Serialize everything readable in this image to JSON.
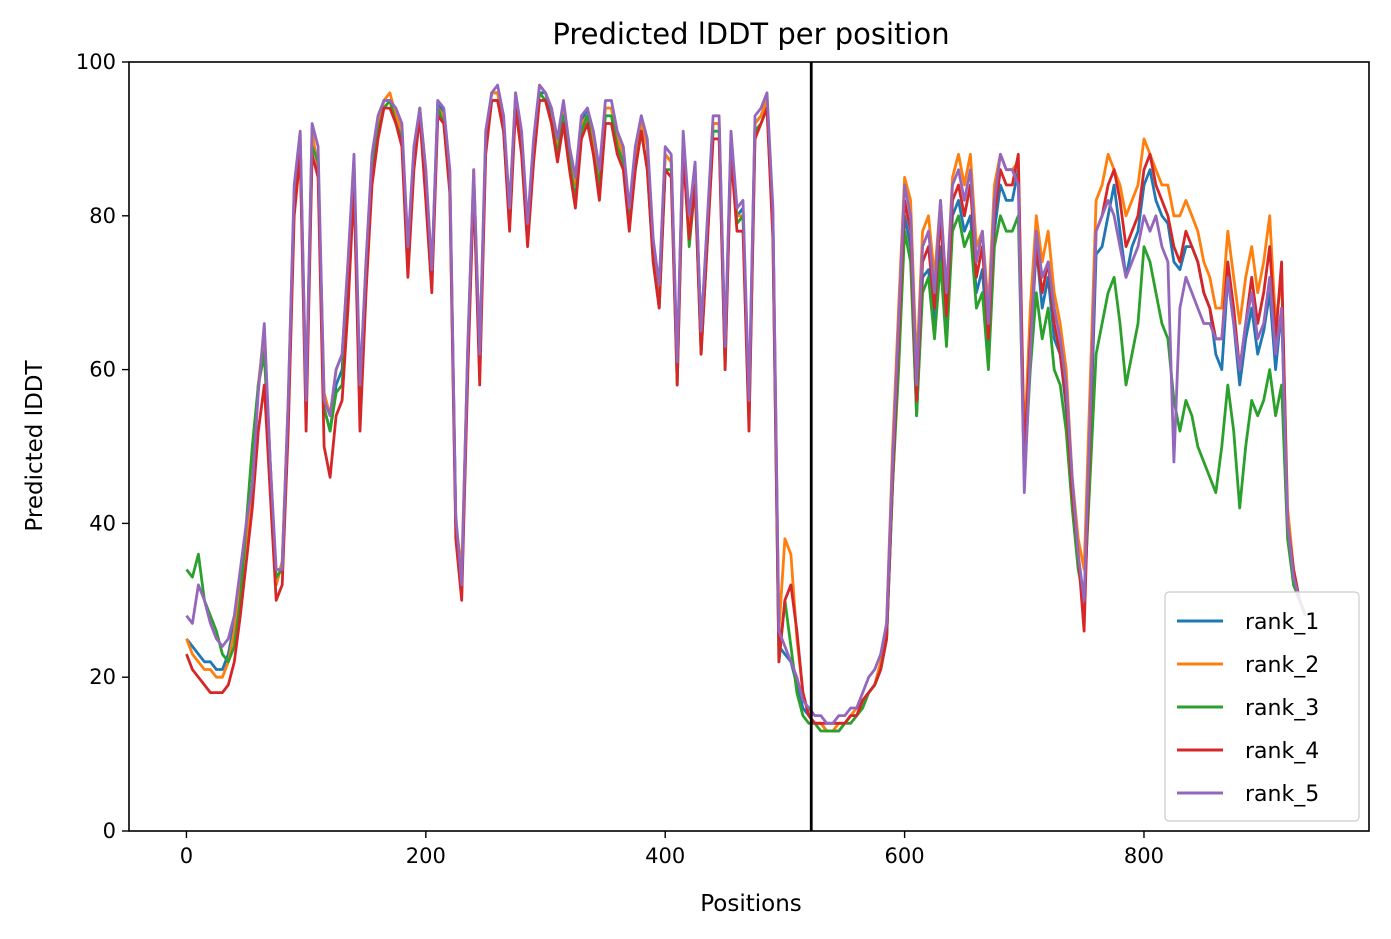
{
  "chart_data": {
    "type": "line",
    "title": "Predicted lDDT per position",
    "xlabel": "Positions",
    "ylabel": "Predicted lDDT",
    "xlim": [
      -48,
      988
    ],
    "ylim": [
      0,
      100
    ],
    "xticks": [
      0,
      200,
      400,
      600,
      800
    ],
    "yticks": [
      0,
      20,
      40,
      60,
      80,
      100
    ],
    "grid": false,
    "legend_position": "lower-right",
    "chain_break_x": 522,
    "sample_step": 5,
    "series": [
      {
        "name": "rank_1",
        "color": "#1f77b4",
        "values": [
          25,
          24,
          23,
          22,
          22,
          21,
          21,
          23,
          27,
          33,
          38,
          44,
          58,
          64,
          48,
          32,
          35,
          55,
          82,
          89,
          55,
          90,
          87,
          55,
          52,
          58,
          60,
          72,
          86,
          56,
          73,
          86,
          92,
          95,
          95,
          93,
          91,
          75,
          88,
          94,
          85,
          72,
          95,
          93,
          85,
          40,
          32,
          62,
          85,
          60,
          90,
          96,
          96,
          92,
          80,
          95,
          90,
          78,
          89,
          96,
          96,
          93,
          89,
          94,
          88,
          84,
          92,
          94,
          90,
          85,
          94,
          94,
          90,
          88,
          80,
          88,
          93,
          89,
          76,
          70,
          88,
          87,
          60,
          90,
          79,
          86,
          65,
          78,
          92,
          92,
          62,
          90,
          80,
          81,
          55,
          92,
          93,
          95,
          80,
          24,
          23,
          22,
          19,
          16,
          15,
          14,
          14,
          13,
          13,
          13,
          14,
          15,
          15,
          17,
          18,
          19,
          21,
          25,
          45,
          62,
          80,
          76,
          54,
          72,
          73,
          66,
          76,
          65,
          80,
          82,
          78,
          80,
          70,
          73,
          62,
          78,
          84,
          82,
          82,
          86,
          46,
          62,
          76,
          68,
          72,
          64,
          62,
          55,
          44,
          35,
          30,
          50,
          75,
          76,
          80,
          84,
          78,
          72,
          76,
          78,
          84,
          86,
          82,
          80,
          79,
          74,
          73,
          76,
          76,
          74,
          70,
          68,
          62,
          60,
          72,
          66,
          58,
          64,
          68,
          62,
          65,
          70,
          60,
          68,
          40,
          32,
          30,
          28
        ]
      },
      {
        "name": "rank_2",
        "color": "#ff7f0e",
        "values": [
          25,
          23,
          22,
          21,
          21,
          20,
          20,
          22,
          26,
          32,
          38,
          45,
          58,
          65,
          48,
          32,
          35,
          56,
          83,
          90,
          56,
          91,
          86,
          57,
          54,
          60,
          62,
          74,
          87,
          57,
          74,
          87,
          92,
          95,
          96,
          93,
          91,
          76,
          88,
          94,
          86,
          72,
          94,
          93,
          86,
          40,
          34,
          62,
          86,
          62,
          90,
          96,
          96,
          92,
          81,
          96,
          90,
          78,
          89,
          97,
          96,
          94,
          89,
          94,
          88,
          84,
          92,
          93,
          90,
          85,
          94,
          94,
          90,
          88,
          80,
          88,
          92,
          89,
          76,
          70,
          88,
          87,
          60,
          90,
          78,
          86,
          64,
          78,
          92,
          92,
          62,
          90,
          80,
          80,
          54,
          92,
          93,
          95,
          80,
          26,
          38,
          36,
          25,
          18,
          15,
          14,
          14,
          13,
          13,
          14,
          14,
          15,
          16,
          17,
          18,
          19,
          22,
          27,
          50,
          68,
          85,
          82,
          60,
          78,
          80,
          72,
          82,
          70,
          85,
          88,
          84,
          88,
          76,
          78,
          68,
          84,
          88,
          86,
          86,
          87,
          50,
          68,
          80,
          74,
          78,
          70,
          66,
          60,
          46,
          38,
          34,
          58,
          82,
          84,
          88,
          86,
          84,
          80,
          82,
          84,
          90,
          88,
          86,
          84,
          84,
          80,
          80,
          82,
          80,
          78,
          74,
          72,
          68,
          68,
          78,
          72,
          66,
          72,
          76,
          70,
          74,
          80,
          66,
          72,
          42,
          34,
          30,
          28
        ]
      },
      {
        "name": "rank_3",
        "color": "#2ca02c",
        "values": [
          34,
          33,
          36,
          30,
          28,
          26,
          23,
          22,
          24,
          30,
          40,
          50,
          58,
          62,
          47,
          33,
          34,
          54,
          82,
          89,
          55,
          89,
          87,
          55,
          52,
          57,
          58,
          71,
          85,
          55,
          72,
          86,
          91,
          94,
          95,
          92,
          90,
          74,
          87,
          93,
          84,
          71,
          94,
          92,
          84,
          40,
          31,
          61,
          84,
          60,
          89,
          95,
          95,
          91,
          79,
          95,
          89,
          77,
          88,
          96,
          95,
          92,
          88,
          93,
          87,
          82,
          91,
          93,
          88,
          84,
          93,
          93,
          89,
          87,
          79,
          86,
          91,
          86,
          74,
          68,
          86,
          86,
          58,
          89,
          76,
          84,
          62,
          76,
          91,
          91,
          60,
          89,
          79,
          80,
          53,
          91,
          92,
          94,
          78,
          22,
          30,
          24,
          18,
          15,
          14,
          14,
          13,
          13,
          13,
          13,
          14,
          14,
          15,
          16,
          18,
          19,
          21,
          25,
          45,
          60,
          78,
          74,
          54,
          70,
          72,
          64,
          74,
          63,
          78,
          80,
          76,
          78,
          68,
          70,
          60,
          76,
          80,
          78,
          78,
          80,
          46,
          60,
          70,
          64,
          68,
          60,
          58,
          52,
          42,
          34,
          30,
          46,
          62,
          66,
          70,
          72,
          66,
          58,
          62,
          66,
          76,
          74,
          70,
          66,
          64,
          56,
          52,
          56,
          54,
          50,
          48,
          46,
          44,
          50,
          58,
          52,
          42,
          50,
          56,
          54,
          56,
          60,
          54,
          58,
          38,
          32,
          30,
          28
        ]
      },
      {
        "name": "rank_4",
        "color": "#d62728",
        "values": [
          23,
          21,
          20,
          19,
          18,
          18,
          18,
          19,
          22,
          28,
          35,
          42,
          52,
          58,
          44,
          30,
          32,
          52,
          80,
          88,
          52,
          88,
          85,
          50,
          46,
          54,
          56,
          68,
          84,
          52,
          70,
          84,
          90,
          94,
          94,
          92,
          89,
          72,
          86,
          93,
          82,
          70,
          93,
          92,
          83,
          38,
          30,
          59,
          84,
          58,
          88,
          95,
          95,
          91,
          78,
          94,
          88,
          76,
          87,
          95,
          95,
          92,
          87,
          92,
          86,
          81,
          90,
          92,
          88,
          82,
          92,
          92,
          88,
          86,
          78,
          86,
          91,
          86,
          74,
          68,
          86,
          85,
          58,
          88,
          77,
          84,
          62,
          76,
          90,
          90,
          60,
          88,
          78,
          78,
          52,
          90,
          92,
          94,
          77,
          22,
          30,
          32,
          26,
          18,
          15,
          14,
          14,
          14,
          14,
          14,
          14,
          15,
          15,
          17,
          18,
          19,
          21,
          25,
          46,
          64,
          82,
          78,
          56,
          74,
          76,
          68,
          80,
          67,
          82,
          84,
          80,
          84,
          72,
          76,
          64,
          80,
          86,
          84,
          84,
          88,
          48,
          64,
          76,
          70,
          74,
          66,
          62,
          56,
          44,
          36,
          26,
          52,
          78,
          80,
          84,
          86,
          82,
          76,
          78,
          80,
          86,
          88,
          84,
          82,
          80,
          76,
          74,
          78,
          76,
          74,
          70,
          68,
          64,
          64,
          74,
          68,
          60,
          66,
          72,
          66,
          70,
          76,
          64,
          74,
          40,
          34,
          30,
          28
        ]
      },
      {
        "name": "rank_5",
        "color": "#9467bd",
        "values": [
          28,
          27,
          32,
          30,
          27,
          25,
          24,
          25,
          28,
          34,
          40,
          45,
          57,
          66,
          48,
          34,
          34,
          56,
          84,
          91,
          56,
          92,
          89,
          56,
          54,
          60,
          62,
          74,
          88,
          58,
          74,
          88,
          93,
          95,
          95,
          94,
          92,
          76,
          89,
          94,
          86,
          73,
          95,
          94,
          86,
          41,
          32,
          63,
          86,
          62,
          91,
          96,
          97,
          93,
          81,
          96,
          91,
          79,
          90,
          97,
          96,
          94,
          90,
          95,
          89,
          85,
          93,
          94,
          91,
          86,
          95,
          95,
          91,
          89,
          81,
          89,
          93,
          90,
          77,
          71,
          89,
          88,
          61,
          91,
          80,
          87,
          65,
          79,
          93,
          93,
          63,
          91,
          81,
          82,
          56,
          93,
          94,
          96,
          81,
          26,
          24,
          22,
          20,
          17,
          16,
          15,
          15,
          14,
          14,
          15,
          15,
          16,
          16,
          18,
          20,
          21,
          23,
          27,
          48,
          66,
          84,
          80,
          58,
          76,
          78,
          70,
          82,
          70,
          84,
          86,
          82,
          86,
          74,
          78,
          66,
          82,
          88,
          86,
          86,
          84,
          44,
          62,
          78,
          72,
          74,
          68,
          64,
          58,
          46,
          36,
          30,
          54,
          78,
          80,
          82,
          80,
          76,
          72,
          74,
          76,
          80,
          78,
          80,
          76,
          74,
          48,
          68,
          72,
          70,
          68,
          66,
          66,
          64,
          64,
          72,
          66,
          60,
          66,
          70,
          64,
          66,
          72,
          62,
          68,
          40,
          33,
          30,
          28
        ]
      }
    ]
  }
}
